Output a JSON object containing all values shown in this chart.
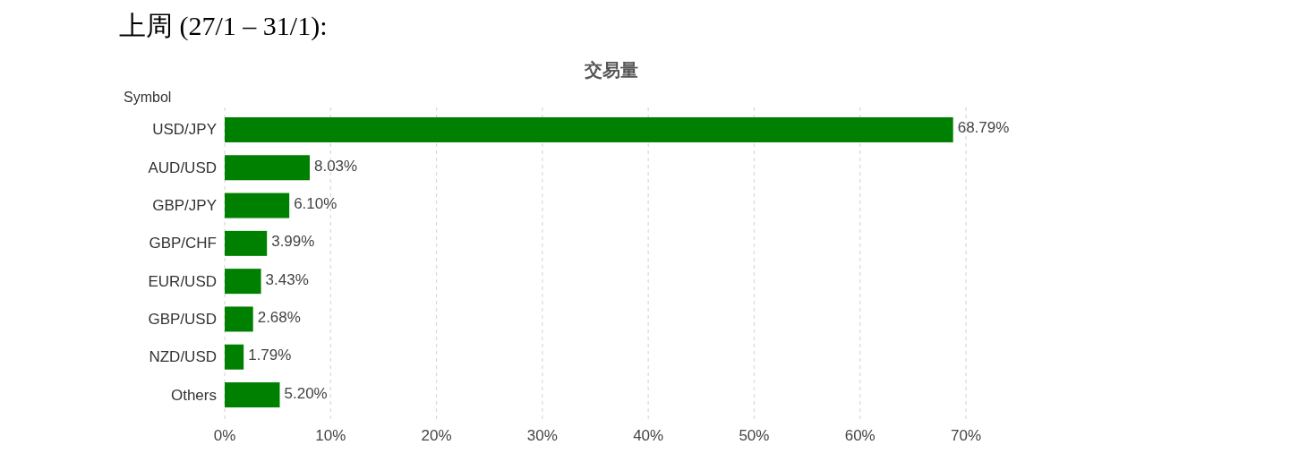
{
  "chart_data": {
    "type": "bar",
    "orientation": "horizontal",
    "title": "上周 (27/1 – 31/1):",
    "subtitle": "交易量",
    "ylabel": "Symbol",
    "categories": [
      "USD/JPY",
      "AUD/USD",
      "GBP/JPY",
      "GBP/CHF",
      "EUR/USD",
      "GBP/USD",
      "NZD/USD",
      "Others"
    ],
    "values": [
      68.79,
      8.03,
      6.1,
      3.99,
      3.43,
      2.68,
      1.79,
      5.2
    ],
    "value_labels": [
      "68.79%",
      "8.03%",
      "6.10%",
      "3.99%",
      "3.43%",
      "2.68%",
      "1.79%",
      "5.20%"
    ],
    "color": "#008000",
    "xlim": [
      0,
      70
    ],
    "xticks": [
      {
        "value": 0,
        "label": "0%"
      },
      {
        "value": 10,
        "label": "10%"
      },
      {
        "value": 20,
        "label": "20%"
      },
      {
        "value": 30,
        "label": "30%"
      },
      {
        "value": 40,
        "label": "40%"
      },
      {
        "value": 50,
        "label": "50%"
      },
      {
        "value": 60,
        "label": "60%"
      },
      {
        "value": 70,
        "label": "70%"
      }
    ],
    "grid": "x"
  }
}
